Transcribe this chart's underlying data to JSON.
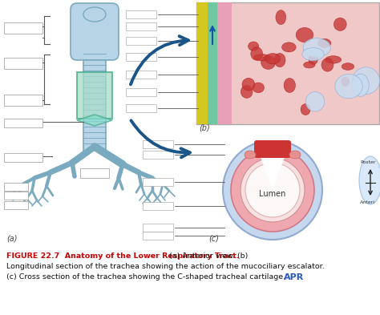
{
  "title_bold": "FIGURE 22.7  Anatomy of the Lower Respiratory Tract.",
  "title_normal": " (a) Anterior view. (b)",
  "line2": "Longitudinal section of the trachea showing the action of the mucociliary escalator.",
  "line3": "(c) Cross section of the trachea showing the C-shaped tracheal cartilage.",
  "apr_text": "APR",
  "bg_color": "#ffffff",
  "label_a": "(a)",
  "label_c": "(c)",
  "label_b": "(b)",
  "title_color": "#cc0000",
  "apr_color": "#2255cc",
  "text_color": "#111111",
  "fig_bg": "#ffffff",
  "trachea_blue": "#b8d5e8",
  "trachea_edge": "#7aaac0",
  "highlight_green": "#a8dcc8",
  "highlight_edge": "#44aa88",
  "label_line_color": "#555555",
  "arrow_color": "#1a5588"
}
